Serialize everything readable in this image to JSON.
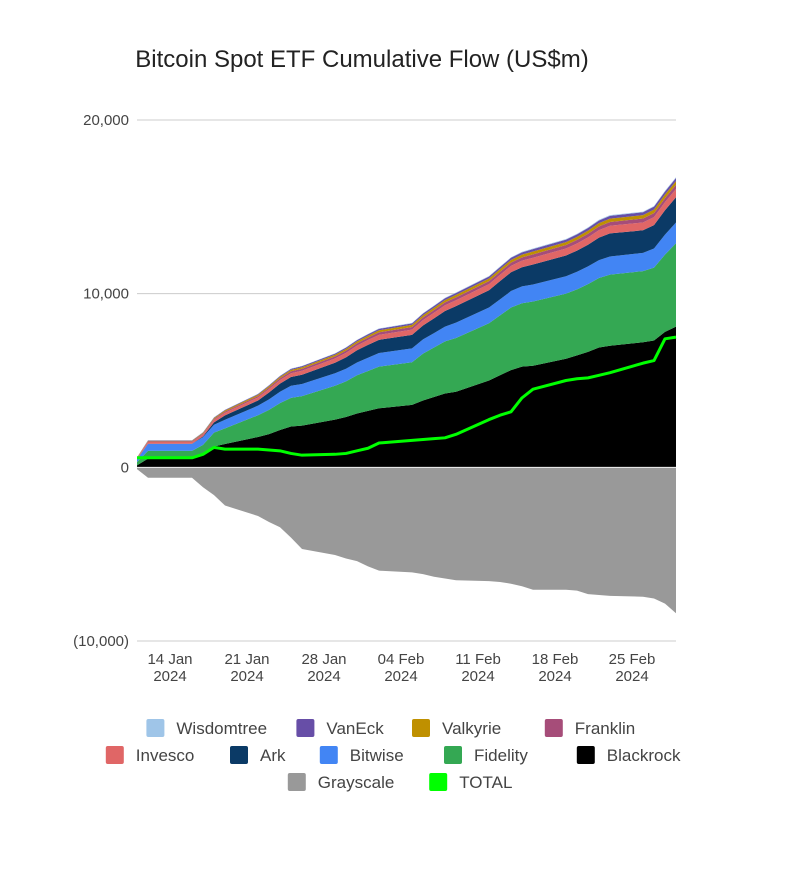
{
  "chart_data": {
    "type": "area",
    "title": "Bitcoin Spot ETF Cumulative Flow (US$m)",
    "xlabel": "",
    "ylabel": "",
    "ylim": [
      -10000,
      20000
    ],
    "yticks": [
      20000,
      10000,
      0,
      -10000
    ],
    "ytick_labels": [
      "20,000",
      "10,000",
      "0",
      "(10,000)"
    ],
    "xtick_labels": [
      {
        "date": "14 Jan",
        "year": "2024",
        "x": "2024-01-14"
      },
      {
        "date": "21 Jan",
        "year": "2024",
        "x": "2024-01-21"
      },
      {
        "date": "28 Jan",
        "year": "2024",
        "x": "2024-01-28"
      },
      {
        "date": "04 Feb",
        "year": "2024",
        "x": "2024-02-04"
      },
      {
        "date": "11 Feb",
        "year": "2024",
        "x": "2024-02-11"
      },
      {
        "date": "18 Feb",
        "year": "2024",
        "x": "2024-02-18"
      },
      {
        "date": "25 Feb",
        "year": "2024",
        "x": "2024-02-25"
      }
    ],
    "x": [
      "2024-01-11",
      "2024-01-12",
      "2024-01-15",
      "2024-01-16",
      "2024-01-17",
      "2024-01-18",
      "2024-01-19",
      "2024-01-22",
      "2024-01-23",
      "2024-01-24",
      "2024-01-25",
      "2024-01-26",
      "2024-01-29",
      "2024-01-30",
      "2024-01-31",
      "2024-02-01",
      "2024-02-02",
      "2024-02-05",
      "2024-02-06",
      "2024-02-07",
      "2024-02-08",
      "2024-02-09",
      "2024-02-12",
      "2024-02-13",
      "2024-02-14",
      "2024-02-15",
      "2024-02-16",
      "2024-02-19",
      "2024-02-20",
      "2024-02-21",
      "2024-02-22",
      "2024-02-23",
      "2024-02-26",
      "2024-02-27",
      "2024-02-28",
      "2024-02-29"
    ],
    "grid": true,
    "legend_position": "bottom",
    "series": [
      {
        "name": "Blackrock",
        "color": "#000000",
        "kind": "positive",
        "values": [
          110,
          500,
          500,
          500,
          740,
          1200,
          1340,
          1750,
          1910,
          2150,
          2350,
          2400,
          2750,
          2900,
          3100,
          3250,
          3400,
          3600,
          3850,
          4050,
          4250,
          4350,
          5000,
          5300,
          5600,
          5800,
          5850,
          6250,
          6450,
          6650,
          6900,
          7000,
          7200,
          7300,
          7800,
          8100
        ]
      },
      {
        "name": "Fidelity",
        "color": "#34a853",
        "kind": "positive",
        "values": [
          200,
          450,
          450,
          450,
          550,
          800,
          900,
          1250,
          1400,
          1550,
          1650,
          1700,
          1950,
          2050,
          2200,
          2300,
          2400,
          2450,
          2700,
          2850,
          3000,
          3100,
          3300,
          3450,
          3600,
          3650,
          3700,
          3750,
          3800,
          3900,
          4000,
          4100,
          4100,
          4200,
          4450,
          4800
        ]
      },
      {
        "name": "Bitwise",
        "color": "#4285f4",
        "kind": "positive",
        "values": [
          150,
          400,
          400,
          400,
          450,
          450,
          500,
          550,
          600,
          650,
          700,
          700,
          720,
          730,
          740,
          760,
          780,
          800,
          820,
          830,
          850,
          880,
          900,
          920,
          950,
          970,
          980,
          1000,
          1010,
          1020,
          1030,
          1040,
          1050,
          1100,
          1150,
          1200
        ]
      },
      {
        "name": "Ark",
        "color": "#0b3a66",
        "kind": "positive",
        "values": [
          10,
          10,
          10,
          10,
          40,
          140,
          250,
          300,
          400,
          470,
          500,
          530,
          600,
          650,
          700,
          740,
          760,
          780,
          800,
          850,
          900,
          950,
          1000,
          1050,
          1080,
          1100,
          1150,
          1200,
          1220,
          1250,
          1300,
          1330,
          1300,
          1350,
          1400,
          1450
        ]
      },
      {
        "name": "Invesco",
        "color": "#e06666",
        "kind": "positive",
        "values": [
          50,
          100,
          100,
          100,
          120,
          140,
          150,
          180,
          200,
          210,
          220,
          230,
          250,
          260,
          270,
          280,
          290,
          300,
          310,
          320,
          330,
          340,
          350,
          360,
          370,
          380,
          390,
          400,
          410,
          420,
          430,
          440,
          450,
          460,
          470,
          480
        ]
      },
      {
        "name": "Franklin",
        "color": "#a64d79",
        "kind": "positive",
        "values": [
          20,
          40,
          40,
          40,
          50,
          60,
          70,
          80,
          90,
          100,
          110,
          115,
          120,
          130,
          135,
          140,
          145,
          150,
          155,
          160,
          165,
          170,
          175,
          180,
          185,
          190,
          195,
          200,
          205,
          210,
          215,
          220,
          225,
          230,
          235,
          240
        ]
      },
      {
        "name": "Valkyrie",
        "color": "#bf9000",
        "kind": "positive",
        "values": [
          20,
          30,
          30,
          30,
          40,
          50,
          60,
          70,
          75,
          80,
          85,
          90,
          95,
          100,
          105,
          110,
          115,
          120,
          125,
          130,
          135,
          140,
          145,
          150,
          155,
          160,
          165,
          170,
          175,
          180,
          185,
          190,
          195,
          200,
          205,
          210
        ]
      },
      {
        "name": "VanEck",
        "color": "#674ea7",
        "kind": "positive",
        "values": [
          10,
          20,
          20,
          20,
          25,
          30,
          35,
          40,
          45,
          50,
          55,
          60,
          65,
          70,
          75,
          80,
          85,
          90,
          95,
          100,
          105,
          110,
          115,
          120,
          125,
          130,
          135,
          140,
          145,
          150,
          155,
          160,
          165,
          170,
          175,
          180
        ]
      },
      {
        "name": "Wisdomtree",
        "color": "#9fc5e8",
        "kind": "positive",
        "values": [
          5,
          8,
          8,
          8,
          10,
          12,
          14,
          15,
          16,
          17,
          18,
          19,
          20,
          21,
          22,
          23,
          24,
          25,
          26,
          27,
          28,
          29,
          30,
          31,
          32,
          33,
          34,
          35,
          36,
          37,
          38,
          39,
          40,
          41,
          42,
          43
        ]
      },
      {
        "name": "Grayscale",
        "color": "#999999",
        "kind": "negative",
        "values": [
          -100,
          -600,
          -600,
          -600,
          -1150,
          -1600,
          -2200,
          -2800,
          -3150,
          -3450,
          -4050,
          -4700,
          -5050,
          -5250,
          -5400,
          -5700,
          -5950,
          -6050,
          -6150,
          -6300,
          -6400,
          -6500,
          -6550,
          -6600,
          -6700,
          -6850,
          -7050,
          -7050,
          -7100,
          -7300,
          -7350,
          -7400,
          -7450,
          -7550,
          -7850,
          -8400
        ]
      },
      {
        "name": "TOTAL",
        "color": "#00ff00",
        "kind": "line",
        "values": [
          550,
          550,
          550,
          550,
          750,
          1150,
          1050,
          1050,
          1000,
          950,
          800,
          700,
          750,
          800,
          950,
          1100,
          1400,
          1550,
          1600,
          1650,
          1700,
          1900,
          2750,
          3000,
          3200,
          4000,
          4500,
          5000,
          5100,
          5150,
          5300,
          5450,
          6000,
          6150,
          7400,
          7500
        ]
      }
    ]
  },
  "legend": {
    "rows": [
      [
        "Wisdomtree",
        "VanEck",
        "Valkyrie",
        "Franklin"
      ],
      [
        "Invesco",
        "Ark",
        "Bitwise",
        "Fidelity",
        "Blackrock"
      ],
      [
        "Grayscale",
        "TOTAL"
      ]
    ]
  }
}
